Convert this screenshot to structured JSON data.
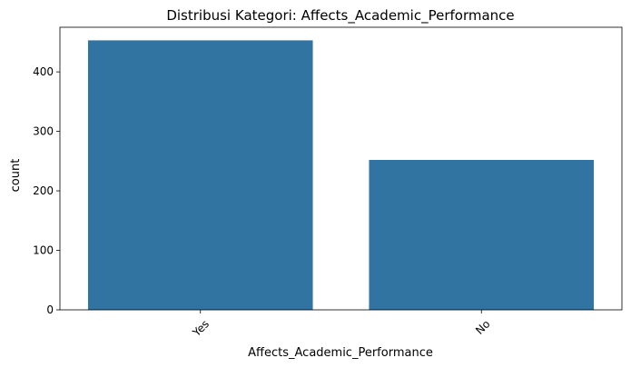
{
  "chart_data": {
    "type": "bar",
    "title": "Distribusi Kategori: Affects_Academic_Performance",
    "xlabel": "Affects_Academic_Performance",
    "ylabel": "count",
    "categories": [
      "Yes",
      "No"
    ],
    "values": [
      453,
      252
    ],
    "ylim": [
      0,
      475
    ],
    "yticks": [
      0,
      100,
      200,
      300,
      400
    ],
    "xtick_rotation": 45,
    "bar_color": "#3274a1",
    "grid": false,
    "legend": "none"
  }
}
